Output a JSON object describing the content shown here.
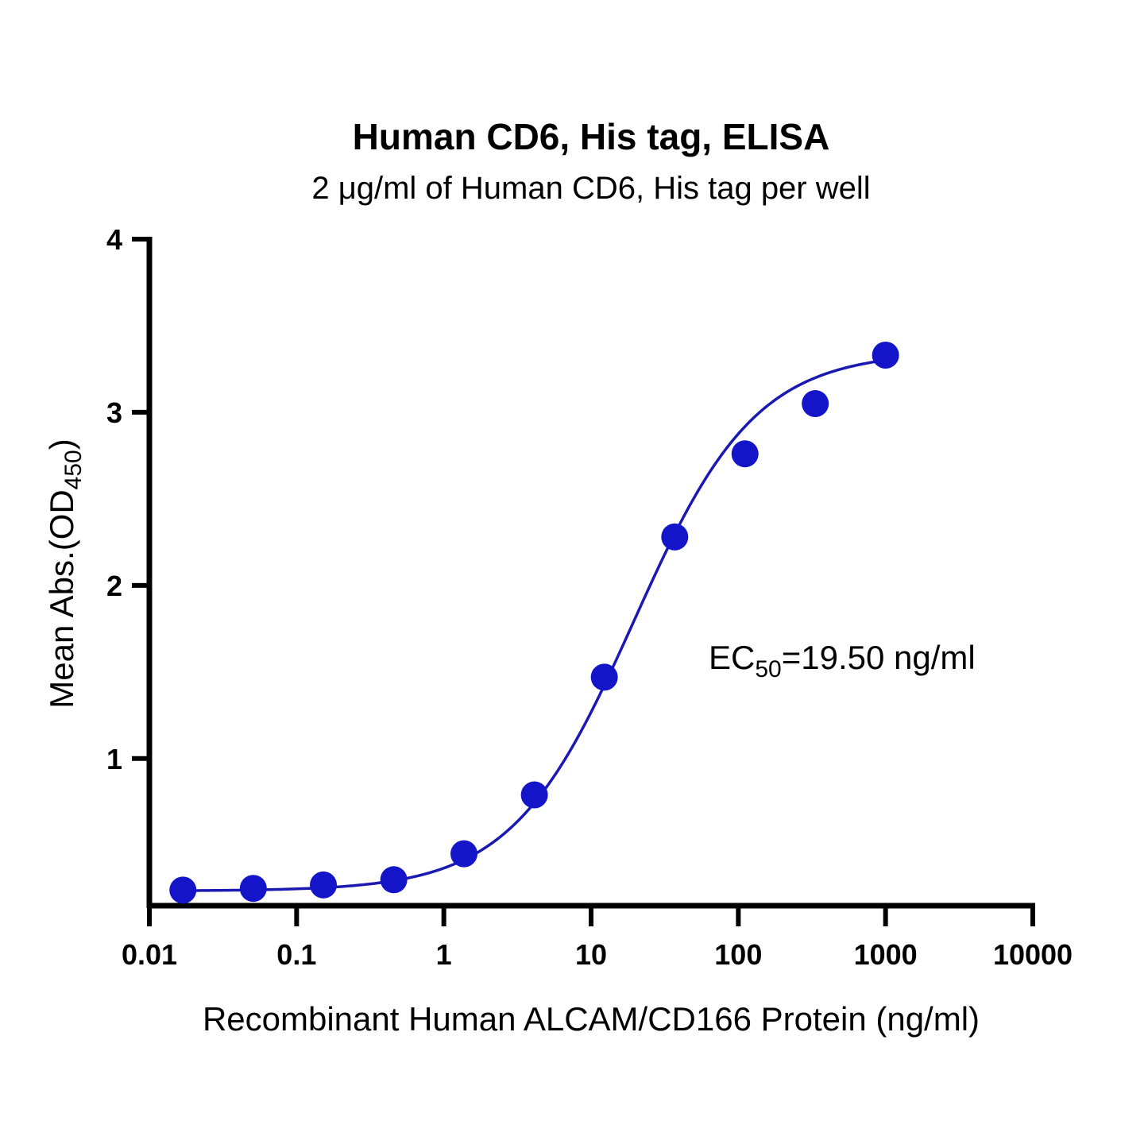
{
  "chart_data": {
    "type": "scatter",
    "title": "Human CD6, His tag, ELISA",
    "subtitle": "2 μg/ml of Human CD6, His tag per well",
    "xlabel": "Recombinant Human ALCAM/CD166 Protein (ng/ml)",
    "ylabel_main": "Mean Abs.(OD",
    "ylabel_sub": "450",
    "ylabel_end": ")",
    "xscale": "log",
    "xlim": [
      0.01,
      10000
    ],
    "ylim": [
      0.15,
      4
    ],
    "x_ticks": [
      {
        "value": 0.01,
        "label": "0.01"
      },
      {
        "value": 0.1,
        "label": "0.1"
      },
      {
        "value": 1,
        "label": "1"
      },
      {
        "value": 10,
        "label": "10"
      },
      {
        "value": 100,
        "label": "100"
      },
      {
        "value": 1000,
        "label": "1000"
      },
      {
        "value": 10000,
        "label": "10000"
      }
    ],
    "y_ticks": [
      {
        "value": 1,
        "label": "1"
      },
      {
        "value": 2,
        "label": "2"
      },
      {
        "value": 3,
        "label": "3"
      },
      {
        "value": 4,
        "label": "4"
      }
    ],
    "points": {
      "x": [
        0.0169,
        0.0508,
        0.152,
        0.457,
        1.37,
        4.12,
        12.3,
        37.0,
        111,
        333,
        1000
      ],
      "y": [
        0.24,
        0.25,
        0.27,
        0.3,
        0.45,
        0.79,
        1.47,
        2.28,
        2.76,
        3.05,
        3.33
      ]
    },
    "fit": {
      "model": "4PL",
      "bottom": 0.235,
      "top": 3.35,
      "ec50": 19.5,
      "hill": 1.05
    },
    "annotation": {
      "prefix": "EC",
      "sub": "50",
      "suffix": "=19.50 ng/ml"
    },
    "grid": false,
    "legend": "none",
    "colors": {
      "series": "#1a1ab3",
      "marker": "#1414c8",
      "axis": "#000000"
    }
  }
}
